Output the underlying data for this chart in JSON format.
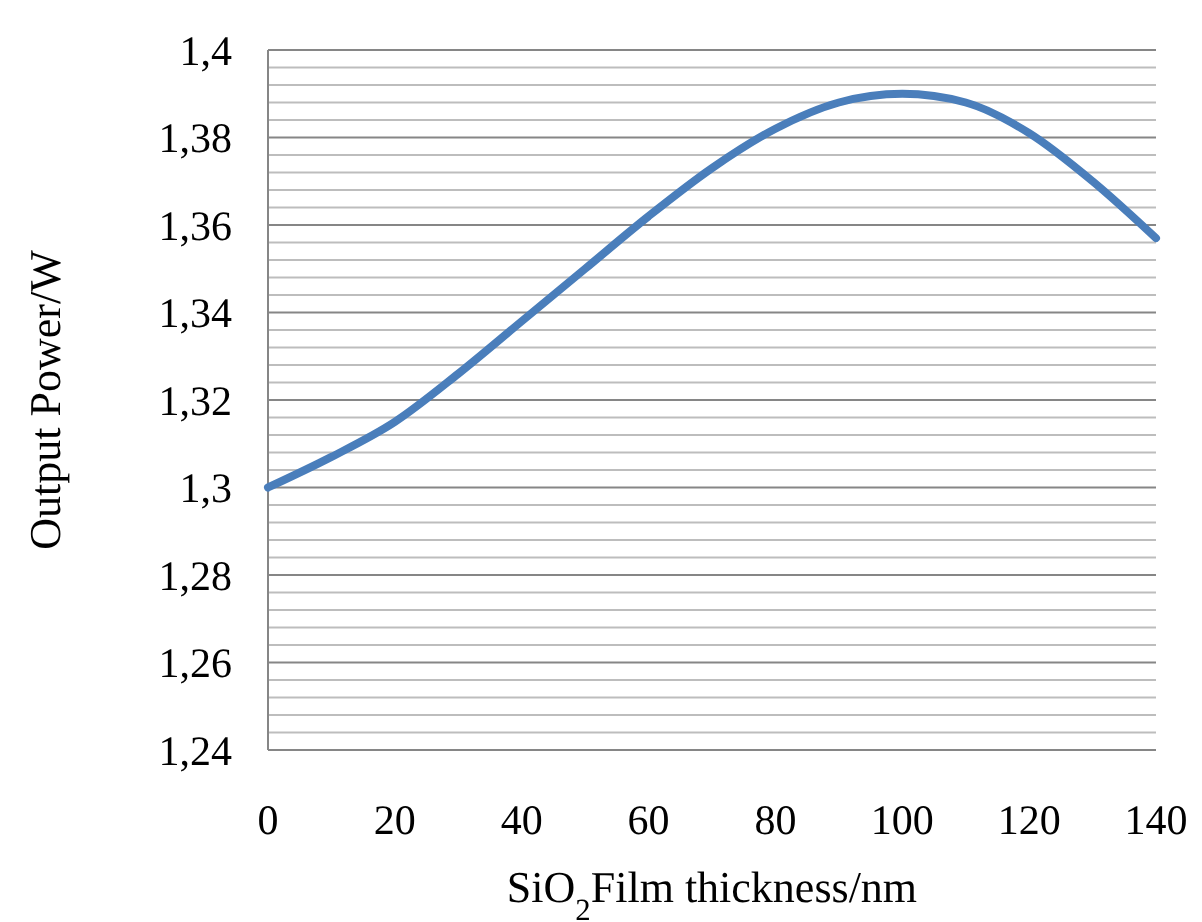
{
  "chart_data": {
    "type": "line",
    "xlabel": "SiO$_{2}$Film thickness/nm",
    "ylabel": "Output Power/W",
    "x": [
      0,
      10,
      20,
      30,
      40,
      50,
      60,
      70,
      80,
      90,
      100,
      110,
      120,
      130,
      140
    ],
    "series": [
      {
        "color": "#4a7ebb",
        "values": [
          1.3,
          1.307,
          1.315,
          1.326,
          1.338,
          1.35,
          1.362,
          1.373,
          1.382,
          1.388,
          1.39,
          1.388,
          1.381,
          1.37,
          1.357
        ]
      }
    ],
    "xlim": [
      0,
      140
    ],
    "xticks": [
      0,
      20,
      40,
      60,
      80,
      100,
      120,
      140
    ],
    "ylim": [
      1.24,
      1.4
    ],
    "yticks": [
      {
        "value": 1.24,
        "label": "1,24"
      },
      {
        "value": 1.244,
        "label": null
      },
      {
        "value": 1.248,
        "label": null
      },
      {
        "value": 1.252,
        "label": null
      },
      {
        "value": 1.256,
        "label": null
      },
      {
        "value": 1.26,
        "label": "1,26"
      },
      {
        "value": 1.264,
        "label": null
      },
      {
        "value": 1.268,
        "label": null
      },
      {
        "value": 1.272,
        "label": null
      },
      {
        "value": 1.276,
        "label": null
      },
      {
        "value": 1.28,
        "label": "1,28"
      },
      {
        "value": 1.284,
        "label": null
      },
      {
        "value": 1.288,
        "label": null
      },
      {
        "value": 1.292,
        "label": null
      },
      {
        "value": 1.296,
        "label": null
      },
      {
        "value": 1.3,
        "label": "1,3"
      },
      {
        "value": 1.304,
        "label": null
      },
      {
        "value": 1.308,
        "label": null
      },
      {
        "value": 1.312,
        "label": null
      },
      {
        "value": 1.316,
        "label": null
      },
      {
        "value": 1.32,
        "label": "1,32"
      },
      {
        "value": 1.324,
        "label": null
      },
      {
        "value": 1.328,
        "label": null
      },
      {
        "value": 1.332,
        "label": null
      },
      {
        "value": 1.336,
        "label": null
      },
      {
        "value": 1.34,
        "label": "1,34"
      },
      {
        "value": 1.344,
        "label": null
      },
      {
        "value": 1.348,
        "label": null
      },
      {
        "value": 1.352,
        "label": null
      },
      {
        "value": 1.356,
        "label": null
      },
      {
        "value": 1.36,
        "label": "1,36"
      },
      {
        "value": 1.364,
        "label": null
      },
      {
        "value": 1.368,
        "label": null
      },
      {
        "value": 1.372,
        "label": null
      },
      {
        "value": 1.376,
        "label": null
      },
      {
        "value": 1.38,
        "label": "1,38"
      },
      {
        "value": 1.384,
        "label": null
      },
      {
        "value": 1.388,
        "label": null
      },
      {
        "value": 1.392,
        "label": null
      },
      {
        "value": 1.396,
        "label": null
      },
      {
        "value": 1.4,
        "label": "1,4"
      }
    ],
    "grid": "y",
    "marker": "none",
    "line_style": "solid"
  }
}
